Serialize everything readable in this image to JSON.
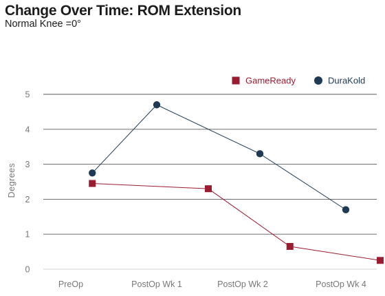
{
  "title": "Change Over Time: ROM Extension",
  "subtitle": "Normal Knee =0°",
  "chart_data": {
    "type": "line",
    "title": "Change Over Time: ROM Extension",
    "subtitle": "Normal Knee =0°",
    "xlabel": "",
    "ylabel": "Degrees",
    "ylim": [
      0,
      5
    ],
    "yticks": [
      0,
      1,
      2,
      3,
      4,
      5
    ],
    "grid": true,
    "legend_position": "top-right",
    "categories": [
      "PreOp",
      "PostOp Wk 1",
      "PostOp Wk 2",
      "PostOp Wk 4"
    ],
    "series": [
      {
        "name": "GameReady",
        "color": "#9b1b30",
        "marker": "square",
        "x": [
          0.25,
          1.6,
          2.55,
          3.6
        ],
        "values": [
          2.45,
          2.3,
          0.65,
          0.25
        ]
      },
      {
        "name": "DuraKold",
        "color": "#1f3a54",
        "marker": "circle",
        "x": [
          0.25,
          1.0,
          2.2,
          3.2
        ],
        "values": [
          2.75,
          4.7,
          3.3,
          1.7
        ]
      }
    ]
  }
}
